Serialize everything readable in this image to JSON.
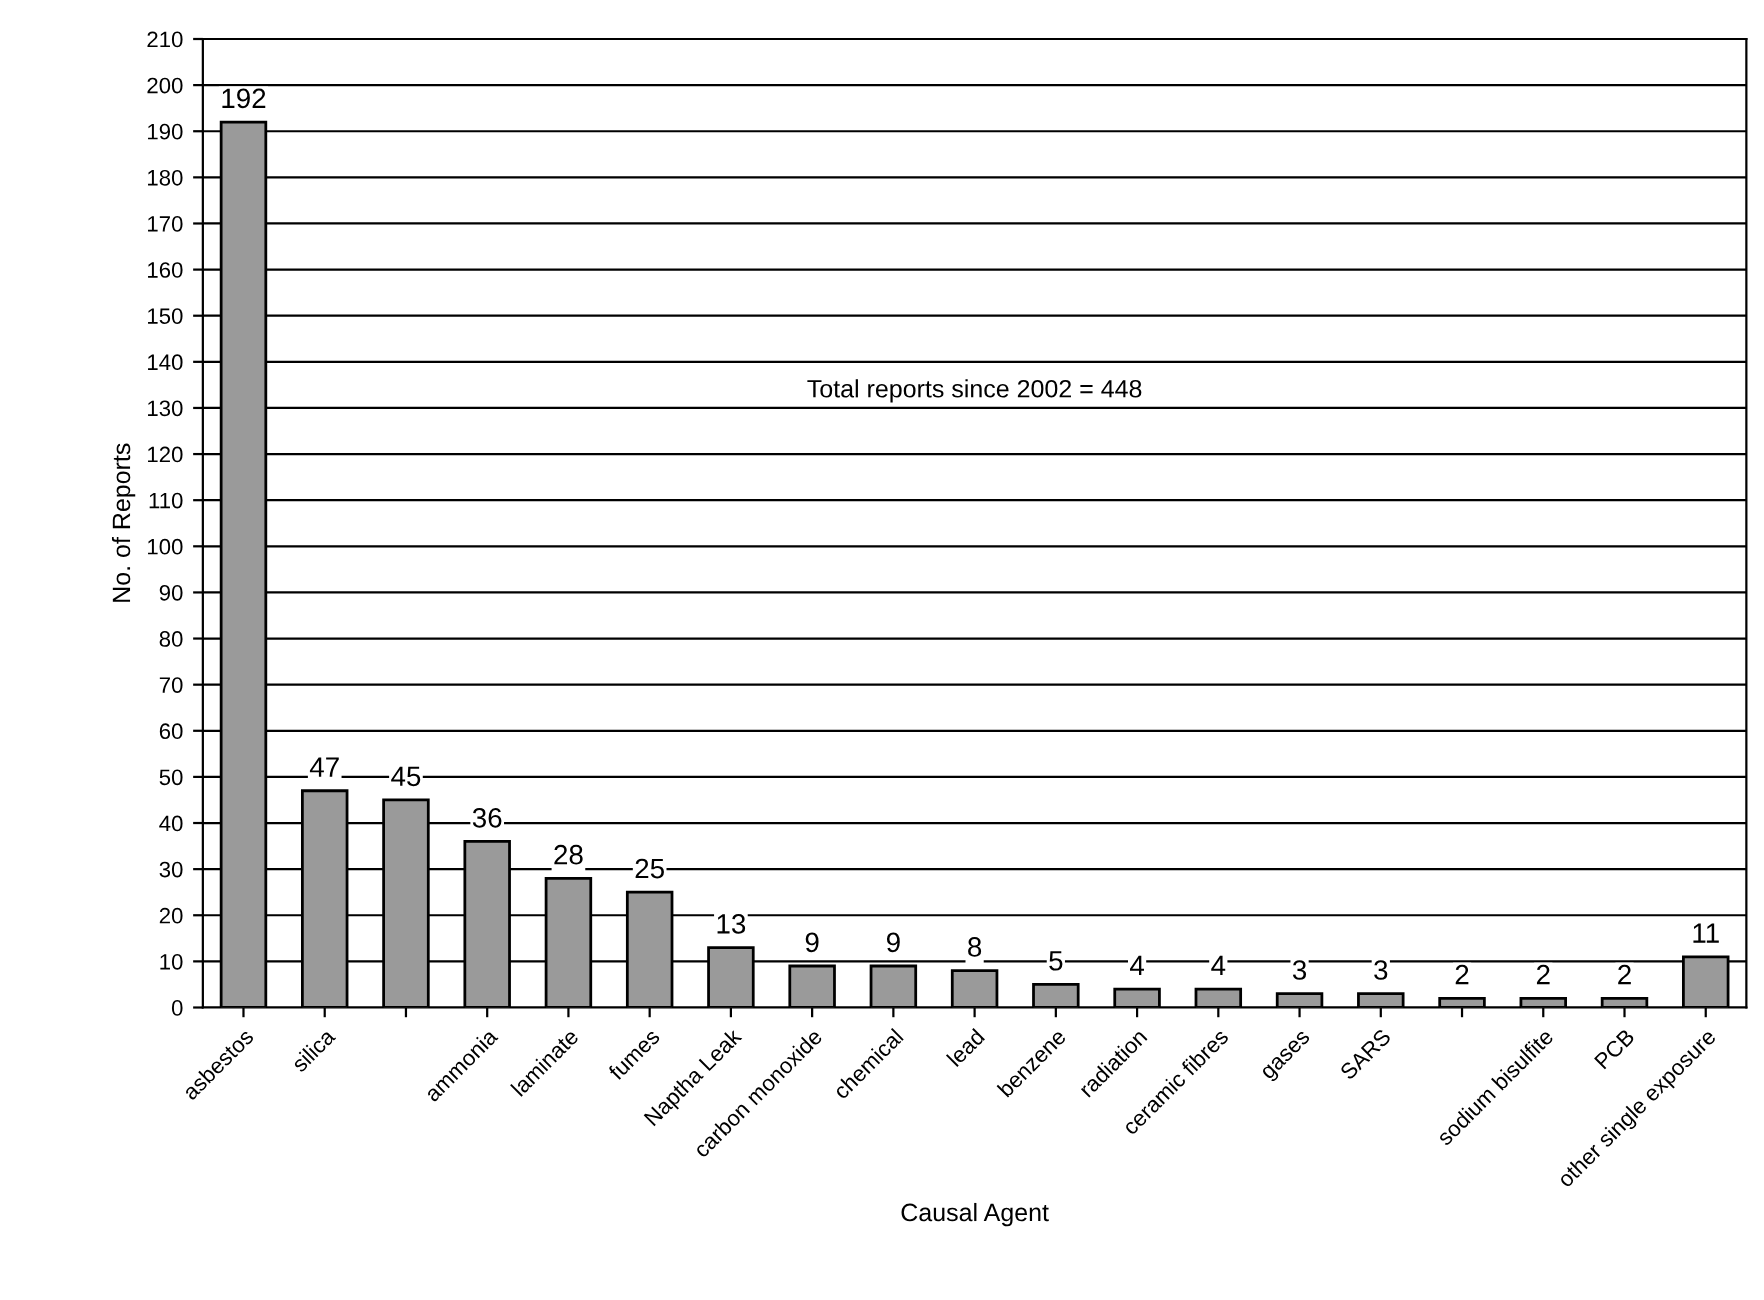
{
  "chart_data": {
    "type": "bar",
    "xlabel": "Causal Agent",
    "ylabel": "No. of Reports",
    "categories": [
      "asbestos",
      "silica",
      null,
      "ammonia",
      "laminate",
      "fumes",
      "Naptha Leak",
      "carbon monoxide",
      "chemical",
      "lead",
      "benzene",
      "radiation",
      "ceramic fibres",
      "gases",
      "SARS",
      null,
      "sodium bisulfite",
      "PCB",
      "other single exposure"
    ],
    "values": [
      192,
      47,
      45,
      36,
      28,
      25,
      13,
      9,
      9,
      8,
      5,
      4,
      4,
      3,
      3,
      2,
      2,
      2,
      11
    ],
    "color": "#9a9a9a",
    "data_labels": true,
    "ylim": [
      0,
      210
    ],
    "yticks": [
      0,
      10,
      20,
      30,
      40,
      50,
      60,
      70,
      80,
      90,
      100,
      110,
      120,
      130,
      140,
      150,
      160,
      170,
      180,
      190,
      200,
      210
    ],
    "grid": "y",
    "annotations": [
      "Total reports since 2002 = 448"
    ]
  }
}
